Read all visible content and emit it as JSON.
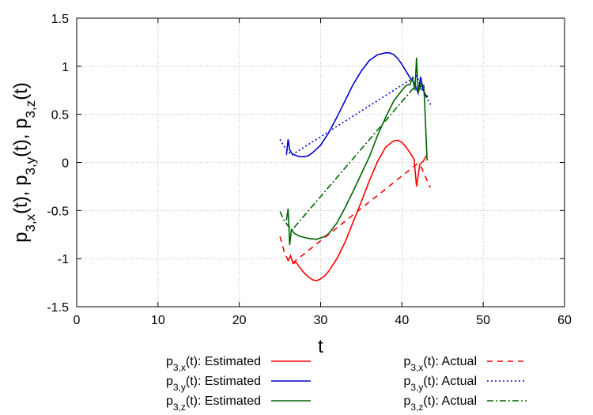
{
  "chart_data": {
    "type": "line",
    "title": "",
    "xlabel": "t",
    "ylabel": {
      "parts": [
        {
          "base": "p",
          "sub": "3,x"
        },
        {
          "text": "(t), "
        },
        {
          "base": "p",
          "sub": "3,y"
        },
        {
          "text": "(t), "
        },
        {
          "base": "p",
          "sub": "3,z"
        },
        {
          "text": "(t)"
        }
      ]
    },
    "xlim": [
      0,
      60
    ],
    "ylim": [
      -1.5,
      1.5
    ],
    "xticks": [
      "0",
      "10",
      "20",
      "30",
      "40",
      "50",
      "60"
    ],
    "yticks": [
      "-1.5",
      "-1",
      "-0.5",
      "0",
      "0.5",
      "1",
      "1.5"
    ],
    "grid": true,
    "legend_position": "bottom",
    "series": [
      {
        "name": {
          "base": "p",
          "sub": "3,x",
          "rest": "(t): Estimated"
        },
        "color": "#ff0000",
        "dash": "solid",
        "x": [
          26,
          26.3,
          26.6,
          27,
          27.5,
          28,
          28.5,
          29,
          29.5,
          30,
          30.5,
          31,
          32,
          33,
          34,
          35,
          36,
          37,
          38,
          39,
          39.5,
          40,
          40.5,
          41,
          41.5,
          41.8,
          42.2,
          42.6,
          43.0
        ],
        "y": [
          -1.02,
          -0.97,
          -1.05,
          -1.04,
          -1.1,
          -1.15,
          -1.19,
          -1.22,
          -1.23,
          -1.21,
          -1.18,
          -1.13,
          -1.0,
          -0.83,
          -0.62,
          -0.41,
          -0.19,
          0.01,
          0.16,
          0.225,
          0.23,
          0.21,
          0.16,
          0.1,
          0.03,
          -0.25,
          -0.02,
          0.01,
          0.07
        ]
      },
      {
        "name": {
          "base": "p",
          "sub": "3,y",
          "rest": "(t): Estimated"
        },
        "color": "#0000cc",
        "dash": "solid",
        "x": [
          25.8,
          26.0,
          26.2,
          26.5,
          27,
          27.5,
          28,
          28.5,
          29,
          30,
          31,
          32,
          33,
          34,
          35,
          36,
          37,
          38,
          38.5,
          39,
          39.5,
          40,
          40.5,
          41,
          41.5,
          42,
          42.3,
          42.6,
          43.0
        ],
        "y": [
          0.08,
          0.24,
          0.13,
          0.09,
          0.07,
          0.06,
          0.06,
          0.07,
          0.1,
          0.18,
          0.31,
          0.47,
          0.64,
          0.81,
          0.95,
          1.06,
          1.12,
          1.14,
          1.14,
          1.12,
          1.08,
          1.02,
          0.95,
          0.88,
          0.83,
          0.72,
          0.89,
          0.76,
          0.68
        ]
      },
      {
        "name": {
          "base": "p",
          "sub": "3,z",
          "rest": "(t): Estimated"
        },
        "color": "#006400",
        "dash": "solid",
        "x": [
          25.8,
          26.0,
          26.2,
          26.4,
          26.8,
          27.5,
          28.5,
          29.5,
          30.5,
          31,
          32,
          33,
          34,
          35,
          36,
          37,
          38,
          39,
          40,
          40.5,
          41,
          41.3,
          41.6,
          41.8,
          42.0,
          42.3,
          42.7,
          43.1
        ],
        "y": [
          -0.6,
          -0.48,
          -0.86,
          -0.7,
          -0.74,
          -0.77,
          -0.79,
          -0.8,
          -0.77,
          -0.74,
          -0.63,
          -0.47,
          -0.3,
          -0.12,
          0.06,
          0.28,
          0.47,
          0.64,
          0.75,
          0.8,
          0.81,
          0.88,
          0.75,
          1.09,
          0.72,
          0.82,
          0.8,
          0.02
        ]
      },
      {
        "name": {
          "base": "p",
          "sub": "3,x",
          "rest": "(t): Actual"
        },
        "color": "#ff0000",
        "dash": "dashed",
        "x": [
          25.0,
          25.5,
          26.0,
          26.5,
          41.8,
          42.2,
          42.6,
          43.0,
          43.5
        ],
        "y": [
          -0.77,
          -0.92,
          -1.02,
          -1.05,
          -0.02,
          -0.02,
          -0.09,
          -0.17,
          -0.26
        ]
      },
      {
        "name": {
          "base": "p",
          "sub": "3,y",
          "rest": "(t): Actual"
        },
        "color": "#0000cc",
        "dash": "dotted",
        "x": [
          25.0,
          25.5,
          26.0,
          26.5,
          41.8,
          42.3,
          42.8,
          43.2,
          43.6
        ],
        "y": [
          0.24,
          0.17,
          0.11,
          0.08,
          0.9,
          0.8,
          0.72,
          0.65,
          0.59
        ]
      },
      {
        "name": {
          "base": "p",
          "sub": "3,z",
          "rest": "(t): Actual"
        },
        "color": "#006400",
        "dash": "dashdot",
        "x": [
          25.0,
          25.5,
          26.0,
          26.5,
          41.8,
          42.3,
          42.8,
          43.2
        ],
        "y": [
          -0.51,
          -0.6,
          -0.66,
          -0.7,
          0.81,
          0.77,
          0.72,
          0.68
        ]
      }
    ]
  }
}
